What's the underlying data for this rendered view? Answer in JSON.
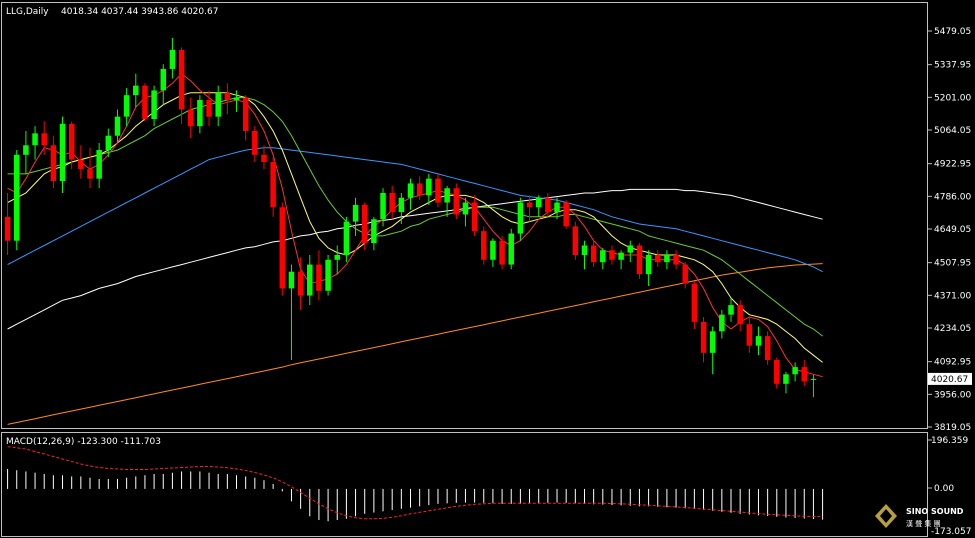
{
  "header": {
    "symbol_label": "LLG,Daily",
    "ohlc_label": "4018.34 4037.44 3943.86 4020.67"
  },
  "macd_panel": {
    "label": "MACD(12,26,9) -123.300 -111.703",
    "axis_ticks": [
      "196.359",
      "0.00",
      "-173.057"
    ]
  },
  "price_axis": {
    "ticks": [
      "5479.05",
      "5337.95",
      "5201.00",
      "5064.05",
      "4922.95",
      "4786.00",
      "4649.05",
      "4507.95",
      "4371.00",
      "4234.05",
      "4092.95",
      "3956.00",
      "3819.05"
    ],
    "current_price": "4020.67"
  },
  "logo": {
    "title": "SINO SOUND",
    "subtitle": "漢 聲 集 團"
  },
  "colors": {
    "background": "#000000",
    "bull_candle": "#00ff00",
    "bear_candle": "#ff0000",
    "ma_fast": "#ff3030",
    "ma_yellow": "#ffff66",
    "ma_green": "#66cc33",
    "ma_blue": "#3399ff",
    "ma_white": "#ffffff",
    "ma_orange": "#ff8c1a",
    "macd_hist": "#ffffff",
    "macd_signal": "#ff2020"
  },
  "chart_data": {
    "type": "candlestick",
    "title": "LLG,Daily",
    "ylim": [
      3819.05,
      5479.05
    ],
    "candles": [
      [
        4700,
        4800,
        4540,
        4600
      ],
      [
        4600,
        4980,
        4560,
        4960
      ],
      [
        4960,
        5060,
        4880,
        5000
      ],
      [
        5000,
        5080,
        4940,
        5050
      ],
      [
        5050,
        5100,
        4960,
        5000
      ],
      [
        5000,
        5040,
        4820,
        4850
      ],
      [
        4850,
        5120,
        4800,
        5090
      ],
      [
        5090,
        5100,
        4900,
        4940
      ],
      [
        4940,
        5000,
        4860,
        4900
      ],
      [
        4900,
        4990,
        4820,
        4860
      ],
      [
        4860,
        5010,
        4820,
        4980
      ],
      [
        4980,
        5070,
        4950,
        5040
      ],
      [
        5040,
        5150,
        5010,
        5120
      ],
      [
        5120,
        5240,
        5080,
        5210
      ],
      [
        5210,
        5300,
        5160,
        5250
      ],
      [
        5250,
        5260,
        5100,
        5110
      ],
      [
        5110,
        5250,
        5080,
        5230
      ],
      [
        5230,
        5340,
        5170,
        5320
      ],
      [
        5320,
        5450,
        5280,
        5400
      ],
      [
        5400,
        5410,
        5090,
        5150
      ],
      [
        5150,
        5200,
        5030,
        5080
      ],
      [
        5080,
        5210,
        5050,
        5190
      ],
      [
        5190,
        5230,
        5080,
        5120
      ],
      [
        5120,
        5250,
        5080,
        5220
      ],
      [
        5220,
        5260,
        5130,
        5190
      ],
      [
        5190,
        5230,
        5140,
        5200
      ],
      [
        5200,
        5210,
        5020,
        5060
      ],
      [
        5060,
        5080,
        4930,
        4960
      ],
      [
        4960,
        5000,
        4900,
        4930
      ],
      [
        4930,
        4950,
        4700,
        4740
      ],
      [
        4740,
        4760,
        4370,
        4400
      ],
      [
        4400,
        4500,
        4100,
        4470
      ],
      [
        4470,
        4530,
        4310,
        4370
      ],
      [
        4370,
        4540,
        4330,
        4500
      ],
      [
        4500,
        4560,
        4350,
        4390
      ],
      [
        4390,
        4540,
        4370,
        4520
      ],
      [
        4520,
        4580,
        4460,
        4540
      ],
      [
        4540,
        4700,
        4510,
        4680
      ],
      [
        4680,
        4780,
        4620,
        4750
      ],
      [
        4750,
        4760,
        4560,
        4590
      ],
      [
        4590,
        4700,
        4560,
        4690
      ],
      [
        4690,
        4820,
        4660,
        4800
      ],
      [
        4800,
        4830,
        4690,
        4720
      ],
      [
        4720,
        4800,
        4670,
        4780
      ],
      [
        4780,
        4860,
        4730,
        4840
      ],
      [
        4840,
        4870,
        4770,
        4790
      ],
      [
        4790,
        4880,
        4750,
        4860
      ],
      [
        4860,
        4880,
        4740,
        4760
      ],
      [
        4760,
        4830,
        4700,
        4820
      ],
      [
        4820,
        4840,
        4690,
        4710
      ],
      [
        4710,
        4780,
        4660,
        4760
      ],
      [
        4760,
        4790,
        4620,
        4640
      ],
      [
        4640,
        4660,
        4500,
        4520
      ],
      [
        4520,
        4610,
        4490,
        4600
      ],
      [
        4600,
        4620,
        4480,
        4500
      ],
      [
        4500,
        4650,
        4480,
        4630
      ],
      [
        4630,
        4780,
        4600,
        4760
      ],
      [
        4760,
        4790,
        4680,
        4740
      ],
      [
        4740,
        4790,
        4700,
        4780
      ],
      [
        4780,
        4800,
        4700,
        4720
      ],
      [
        4720,
        4780,
        4690,
        4760
      ],
      [
        4760,
        4770,
        4650,
        4660
      ],
      [
        4660,
        4680,
        4520,
        4540
      ],
      [
        4540,
        4600,
        4480,
        4580
      ],
      [
        4580,
        4600,
        4490,
        4510
      ],
      [
        4510,
        4570,
        4480,
        4560
      ],
      [
        4560,
        4580,
        4500,
        4520
      ],
      [
        4520,
        4560,
        4480,
        4550
      ],
      [
        4550,
        4600,
        4510,
        4580
      ],
      [
        4580,
        4590,
        4440,
        4460
      ],
      [
        4460,
        4560,
        4410,
        4540
      ],
      [
        4540,
        4560,
        4490,
        4510
      ],
      [
        4510,
        4560,
        4480,
        4540
      ],
      [
        4540,
        4560,
        4480,
        4500
      ],
      [
        4500,
        4510,
        4400,
        4420
      ],
      [
        4420,
        4430,
        4230,
        4260
      ],
      [
        4260,
        4280,
        4090,
        4130
      ],
      [
        4130,
        4240,
        4040,
        4220
      ],
      [
        4220,
        4310,
        4190,
        4290
      ],
      [
        4290,
        4360,
        4260,
        4330
      ],
      [
        4330,
        4350,
        4220,
        4250
      ],
      [
        4250,
        4280,
        4130,
        4160
      ],
      [
        4160,
        4240,
        4120,
        4200
      ],
      [
        4200,
        4220,
        4080,
        4100
      ],
      [
        4100,
        4110,
        3980,
        4000
      ],
      [
        4000,
        4050,
        3960,
        4040
      ],
      [
        4040,
        4090,
        4010,
        4070
      ],
      [
        4070,
        4100,
        3990,
        4010
      ],
      [
        4018.34,
        4037.44,
        3943.86,
        4020.67
      ]
    ],
    "ma_fast": [
      4820,
      4800,
      4860,
      4930,
      4990,
      4980,
      4960,
      4970,
      4930,
      4900,
      4920,
      4960,
      5010,
      5080,
      5160,
      5200,
      5210,
      5230,
      5260,
      5300,
      5270,
      5230,
      5200,
      5170,
      5180,
      5190,
      5180,
      5130,
      5060,
      4960,
      4820,
      4640,
      4480,
      4420,
      4430,
      4440,
      4460,
      4500,
      4560,
      4620,
      4660,
      4690,
      4730,
      4760,
      4780,
      4790,
      4800,
      4810,
      4800,
      4790,
      4770,
      4740,
      4690,
      4640,
      4600,
      4580,
      4600,
      4640,
      4690,
      4720,
      4740,
      4740,
      4710,
      4660,
      4600,
      4560,
      4550,
      4540,
      4540,
      4540,
      4520,
      4520,
      4520,
      4520,
      4500,
      4460,
      4400,
      4320,
      4260,
      4230,
      4260,
      4280,
      4270,
      4240,
      4180,
      4110,
      4060,
      4050,
      4040,
      4030
    ],
    "ma_yellow": [
      4760,
      4780,
      4800,
      4840,
      4880,
      4900,
      4910,
      4930,
      4940,
      4950,
      4960,
      4980,
      5010,
      5040,
      5080,
      5110,
      5140,
      5170,
      5190,
      5210,
      5220,
      5220,
      5220,
      5220,
      5220,
      5210,
      5200,
      5170,
      5120,
      5060,
      4980,
      4880,
      4780,
      4680,
      4610,
      4570,
      4550,
      4540,
      4560,
      4590,
      4620,
      4640,
      4660,
      4690,
      4720,
      4740,
      4760,
      4780,
      4790,
      4790,
      4790,
      4780,
      4760,
      4730,
      4700,
      4680,
      4670,
      4680,
      4690,
      4700,
      4720,
      4730,
      4730,
      4720,
      4700,
      4660,
      4620,
      4590,
      4570,
      4560,
      4550,
      4540,
      4540,
      4540,
      4530,
      4520,
      4500,
      4470,
      4420,
      4360,
      4320,
      4290,
      4280,
      4270,
      4250,
      4220,
      4190,
      4150,
      4120,
      4090
    ],
    "ma_green": [
      4880,
      4880,
      4880,
      4890,
      4900,
      4910,
      4920,
      4930,
      4940,
      4950,
      4960,
      4970,
      4980,
      5000,
      5020,
      5040,
      5070,
      5090,
      5110,
      5130,
      5150,
      5160,
      5170,
      5180,
      5190,
      5200,
      5200,
      5190,
      5170,
      5140,
      5100,
      5040,
      4970,
      4900,
      4830,
      4770,
      4720,
      4680,
      4650,
      4630,
      4620,
      4620,
      4630,
      4640,
      4660,
      4670,
      4690,
      4700,
      4710,
      4720,
      4730,
      4740,
      4740,
      4740,
      4730,
      4720,
      4710,
      4700,
      4700,
      4700,
      4700,
      4710,
      4710,
      4700,
      4690,
      4680,
      4670,
      4660,
      4650,
      4640,
      4620,
      4610,
      4600,
      4590,
      4580,
      4570,
      4560,
      4540,
      4520,
      4490,
      4460,
      4430,
      4400,
      4370,
      4340,
      4310,
      4280,
      4250,
      4230,
      4200
    ],
    "ma_blue": [
      4500,
      4520,
      4540,
      4560,
      4580,
      4600,
      4620,
      4640,
      4660,
      4680,
      4700,
      4720,
      4740,
      4760,
      4780,
      4800,
      4820,
      4840,
      4860,
      4880,
      4900,
      4920,
      4940,
      4950,
      4960,
      4970,
      4980,
      4985,
      4990,
      4990,
      4985,
      4980,
      4975,
      4970,
      4965,
      4960,
      4955,
      4950,
      4945,
      4940,
      4935,
      4930,
      4925,
      4920,
      4910,
      4900,
      4890,
      4880,
      4870,
      4860,
      4850,
      4840,
      4830,
      4820,
      4810,
      4800,
      4790,
      4785,
      4780,
      4775,
      4770,
      4760,
      4750,
      4740,
      4730,
      4715,
      4700,
      4690,
      4680,
      4670,
      4665,
      4660,
      4655,
      4650,
      4640,
      4630,
      4620,
      4610,
      4600,
      4590,
      4580,
      4570,
      4560,
      4550,
      4540,
      4530,
      4520,
      4505,
      4490,
      4470
    ],
    "ma_white": [
      4230,
      4250,
      4270,
      4290,
      4310,
      4330,
      4350,
      4360,
      4370,
      4385,
      4400,
      4410,
      4420,
      4435,
      4450,
      4460,
      4470,
      4480,
      4490,
      4500,
      4510,
      4520,
      4530,
      4540,
      4550,
      4560,
      4570,
      4575,
      4585,
      4595,
      4600,
      4610,
      4620,
      4625,
      4635,
      4640,
      4650,
      4655,
      4665,
      4670,
      4680,
      4685,
      4690,
      4700,
      4705,
      4710,
      4715,
      4720,
      4725,
      4730,
      4735,
      4740,
      4745,
      4750,
      4755,
      4760,
      4765,
      4770,
      4775,
      4780,
      4785,
      4790,
      4795,
      4800,
      4800,
      4805,
      4810,
      4810,
      4815,
      4815,
      4815,
      4815,
      4815,
      4815,
      4810,
      4810,
      4805,
      4800,
      4795,
      4790,
      4780,
      4770,
      4760,
      4750,
      4740,
      4730,
      4720,
      4710,
      4700,
      4690
    ],
    "ma_orange": [
      3830,
      3838,
      3846,
      3854,
      3862,
      3870,
      3878,
      3886,
      3894,
      3902,
      3910,
      3918,
      3926,
      3934,
      3942,
      3950,
      3958,
      3966,
      3974,
      3982,
      3990,
      3998,
      4006,
      4014,
      4022,
      4030,
      4038,
      4046,
      4054,
      4062,
      4070,
      4080,
      4088,
      4096,
      4104,
      4112,
      4120,
      4128,
      4136,
      4144,
      4152,
      4160,
      4168,
      4176,
      4184,
      4192,
      4200,
      4208,
      4216,
      4224,
      4232,
      4240,
      4248,
      4256,
      4264,
      4272,
      4280,
      4288,
      4296,
      4304,
      4312,
      4320,
      4328,
      4336,
      4344,
      4352,
      4360,
      4368,
      4376,
      4384,
      4392,
      4400,
      4408,
      4416,
      4424,
      4432,
      4440,
      4448,
      4456,
      4462,
      4468,
      4474,
      4480,
      4486,
      4490,
      4494,
      4498,
      4500,
      4502,
      4504
    ],
    "macd_ylim": [
      -173.057,
      196.359
    ],
    "macd_hist": [
      80,
      75,
      70,
      65,
      60,
      55,
      55,
      50,
      50,
      45,
      40,
      40,
      40,
      45,
      50,
      55,
      60,
      60,
      65,
      70,
      70,
      70,
      65,
      60,
      60,
      55,
      50,
      45,
      35,
      20,
      -10,
      -50,
      -80,
      -110,
      -125,
      -130,
      -125,
      -120,
      -110,
      -100,
      -95,
      -90,
      -85,
      -80,
      -75,
      -70,
      -65,
      -60,
      -58,
      -56,
      -55,
      -55,
      -56,
      -58,
      -60,
      -60,
      -60,
      -58,
      -57,
      -56,
      -55,
      -56,
      -58,
      -60,
      -62,
      -63,
      -65,
      -66,
      -68,
      -70,
      -70,
      -72,
      -74,
      -75,
      -78,
      -80,
      -84,
      -88,
      -92,
      -96,
      -100,
      -103,
      -106,
      -109,
      -112,
      -115,
      -117,
      -119,
      -121,
      -123.3
    ],
    "macd_signal": [
      170,
      165,
      160,
      150,
      140,
      130,
      120,
      110,
      100,
      92,
      86,
      82,
      80,
      78,
      78,
      78,
      80,
      82,
      84,
      86,
      88,
      90,
      90,
      88,
      85,
      80,
      74,
      66,
      56,
      44,
      28,
      8,
      -14,
      -38,
      -60,
      -80,
      -96,
      -108,
      -116,
      -120,
      -120,
      -118,
      -114,
      -108,
      -100,
      -94,
      -88,
      -82,
      -76,
      -70,
      -66,
      -62,
      -60,
      -58,
      -58,
      -58,
      -58,
      -58,
      -58,
      -58,
      -58,
      -58,
      -58,
      -58,
      -58,
      -58,
      -59,
      -60,
      -62,
      -64,
      -66,
      -68,
      -70,
      -72,
      -75,
      -78,
      -81,
      -84,
      -87,
      -90,
      -93,
      -96,
      -99,
      -102,
      -104,
      -106,
      -108,
      -110,
      -111,
      -111.703
    ]
  }
}
